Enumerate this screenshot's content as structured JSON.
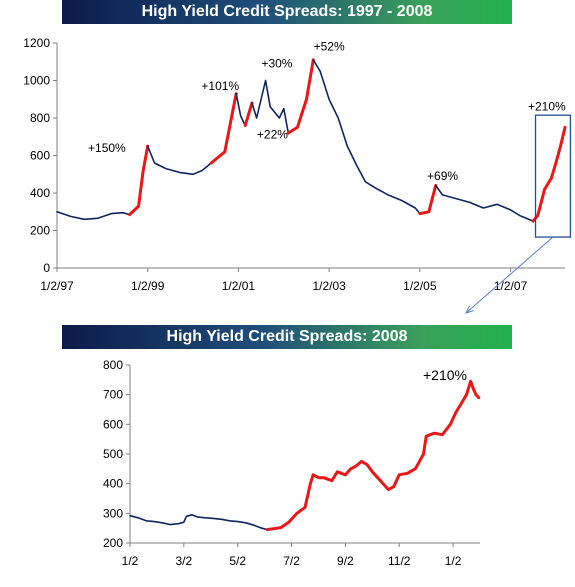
{
  "chart_data": [
    {
      "type": "line",
      "title": "High Yield Credit Spreads: 1997 - 2008",
      "xlabel": "",
      "ylabel": "",
      "ylim": [
        0,
        1200
      ],
      "yticks": [
        0,
        200,
        400,
        600,
        800,
        1000,
        1200
      ],
      "xticks": [
        {
          "label": "1/2/97",
          "x": 1997.0
        },
        {
          "label": "1/2/99",
          "x": 1999.0
        },
        {
          "label": "1/2/01",
          "x": 2001.0
        },
        {
          "label": "1/2/03",
          "x": 2003.0
        },
        {
          "label": "1/2/05",
          "x": 2005.0
        },
        {
          "label": "1/2/07",
          "x": 2007.0
        }
      ],
      "xlim": [
        1997.0,
        2008.2
      ],
      "colors": {
        "normal": "#0f2560",
        "rally": "#e81818",
        "box": "#1f4e9a"
      },
      "series_points": [
        [
          1997.0,
          300
        ],
        [
          1997.3,
          275
        ],
        [
          1997.6,
          260
        ],
        [
          1997.9,
          265
        ],
        [
          1998.2,
          290
        ],
        [
          1998.45,
          295
        ],
        [
          1998.6,
          285
        ],
        [
          1998.8,
          330
        ],
        [
          1998.9,
          520
        ],
        [
          1999.0,
          650
        ],
        [
          1999.15,
          560
        ],
        [
          1999.4,
          530
        ],
        [
          1999.7,
          510
        ],
        [
          2000.0,
          500
        ],
        [
          2000.2,
          520
        ],
        [
          2000.4,
          560
        ],
        [
          2000.7,
          620
        ],
        [
          2000.95,
          930
        ],
        [
          2001.05,
          810
        ],
        [
          2001.15,
          760
        ],
        [
          2001.3,
          880
        ],
        [
          2001.4,
          800
        ],
        [
          2001.6,
          1000
        ],
        [
          2001.7,
          860
        ],
        [
          2001.9,
          800
        ],
        [
          2002.0,
          850
        ],
        [
          2002.1,
          720
        ],
        [
          2002.3,
          750
        ],
        [
          2002.5,
          900
        ],
        [
          2002.65,
          1110
        ],
        [
          2002.8,
          1050
        ],
        [
          2003.0,
          900
        ],
        [
          2003.2,
          800
        ],
        [
          2003.4,
          650
        ],
        [
          2003.6,
          550
        ],
        [
          2003.8,
          460
        ],
        [
          2004.0,
          430
        ],
        [
          2004.3,
          390
        ],
        [
          2004.6,
          360
        ],
        [
          2004.9,
          320
        ],
        [
          2005.0,
          290
        ],
        [
          2005.2,
          300
        ],
        [
          2005.35,
          440
        ],
        [
          2005.5,
          390
        ],
        [
          2005.8,
          370
        ],
        [
          2006.1,
          350
        ],
        [
          2006.4,
          320
        ],
        [
          2006.7,
          340
        ],
        [
          2007.0,
          310
        ],
        [
          2007.2,
          280
        ],
        [
          2007.5,
          250
        ],
        [
          2007.6,
          280
        ],
        [
          2007.75,
          420
        ],
        [
          2007.9,
          480
        ],
        [
          2008.0,
          560
        ],
        [
          2008.1,
          650
        ],
        [
          2008.2,
          750
        ]
      ],
      "rally_segments": [
        [
          1998.6,
          1999.0
        ],
        [
          2000.4,
          2000.95
        ],
        [
          2001.15,
          2001.3
        ],
        [
          2002.1,
          2002.65
        ],
        [
          2005.0,
          2005.35
        ],
        [
          2007.5,
          2008.2
        ]
      ],
      "annotations": [
        {
          "text": "+150%",
          "x": 1998.1,
          "y": 620
        },
        {
          "text": "+101%",
          "x": 2000.6,
          "y": 950
        },
        {
          "text": "+30%",
          "x": 2001.85,
          "y": 1070
        },
        {
          "text": "+22%",
          "x": 2001.75,
          "y": 690
        },
        {
          "text": "+52%",
          "x": 2003.0,
          "y": 1160
        },
        {
          "text": "+69%",
          "x": 2005.5,
          "y": 470
        },
        {
          "text": "+210%",
          "x": 2007.8,
          "y": 840
        }
      ],
      "highlight_box": {
        "x0": 2007.55,
        "x1": 2008.32,
        "y0": 165,
        "y1": 815
      }
    },
    {
      "type": "line",
      "title": "High Yield Credit Spreads: 2008",
      "xlabel": "",
      "ylabel": "",
      "ylim": [
        200,
        800
      ],
      "yticks": [
        200,
        300,
        400,
        500,
        600,
        700,
        800
      ],
      "xticks": [
        {
          "label": "1/2",
          "x": 0
        },
        {
          "label": "3/2",
          "x": 2
        },
        {
          "label": "5/2",
          "x": 4
        },
        {
          "label": "7/2",
          "x": 6
        },
        {
          "label": "9/2",
          "x": 8
        },
        {
          "label": "11/2",
          "x": 10
        },
        {
          "label": "1/2",
          "x": 12
        }
      ],
      "xlim": [
        0,
        13
      ],
      "colors": {
        "normal": "#0f2560",
        "rally": "#e81818"
      },
      "series_points": [
        [
          0.0,
          292
        ],
        [
          0.3,
          285
        ],
        [
          0.6,
          275
        ],
        [
          0.9,
          272
        ],
        [
          1.2,
          268
        ],
        [
          1.5,
          262
        ],
        [
          1.8,
          265
        ],
        [
          2.0,
          270
        ],
        [
          2.1,
          290
        ],
        [
          2.3,
          295
        ],
        [
          2.5,
          288
        ],
        [
          2.8,
          285
        ],
        [
          3.1,
          283
        ],
        [
          3.4,
          280
        ],
        [
          3.7,
          275
        ],
        [
          4.0,
          272
        ],
        [
          4.3,
          268
        ],
        [
          4.6,
          260
        ],
        [
          4.9,
          250
        ],
        [
          5.1,
          245
        ],
        [
          5.3,
          248
        ],
        [
          5.6,
          252
        ],
        [
          5.9,
          270
        ],
        [
          6.2,
          300
        ],
        [
          6.5,
          320
        ],
        [
          6.7,
          400
        ],
        [
          6.8,
          430
        ],
        [
          7.0,
          420
        ],
        [
          7.2,
          420
        ],
        [
          7.5,
          410
        ],
        [
          7.7,
          440
        ],
        [
          8.0,
          430
        ],
        [
          8.2,
          450
        ],
        [
          8.4,
          460
        ],
        [
          8.6,
          475
        ],
        [
          8.8,
          465
        ],
        [
          9.0,
          440
        ],
        [
          9.2,
          420
        ],
        [
          9.4,
          400
        ],
        [
          9.6,
          380
        ],
        [
          9.8,
          390
        ],
        [
          10.0,
          430
        ],
        [
          10.3,
          435
        ],
        [
          10.6,
          450
        ],
        [
          10.9,
          500
        ],
        [
          11.0,
          560
        ],
        [
          11.3,
          570
        ],
        [
          11.6,
          565
        ],
        [
          11.9,
          600
        ],
        [
          12.1,
          640
        ],
        [
          12.3,
          670
        ],
        [
          12.5,
          700
        ],
        [
          12.65,
          745
        ],
        [
          12.75,
          720
        ],
        [
          12.85,
          700
        ],
        [
          12.95,
          690
        ]
      ],
      "rally_segments": [
        [
          5.1,
          12.95
        ]
      ],
      "annotations": [
        {
          "text": "+210%",
          "x": 11.7,
          "y": 750
        }
      ]
    }
  ],
  "connector": {
    "color": "#5b7fc7"
  }
}
